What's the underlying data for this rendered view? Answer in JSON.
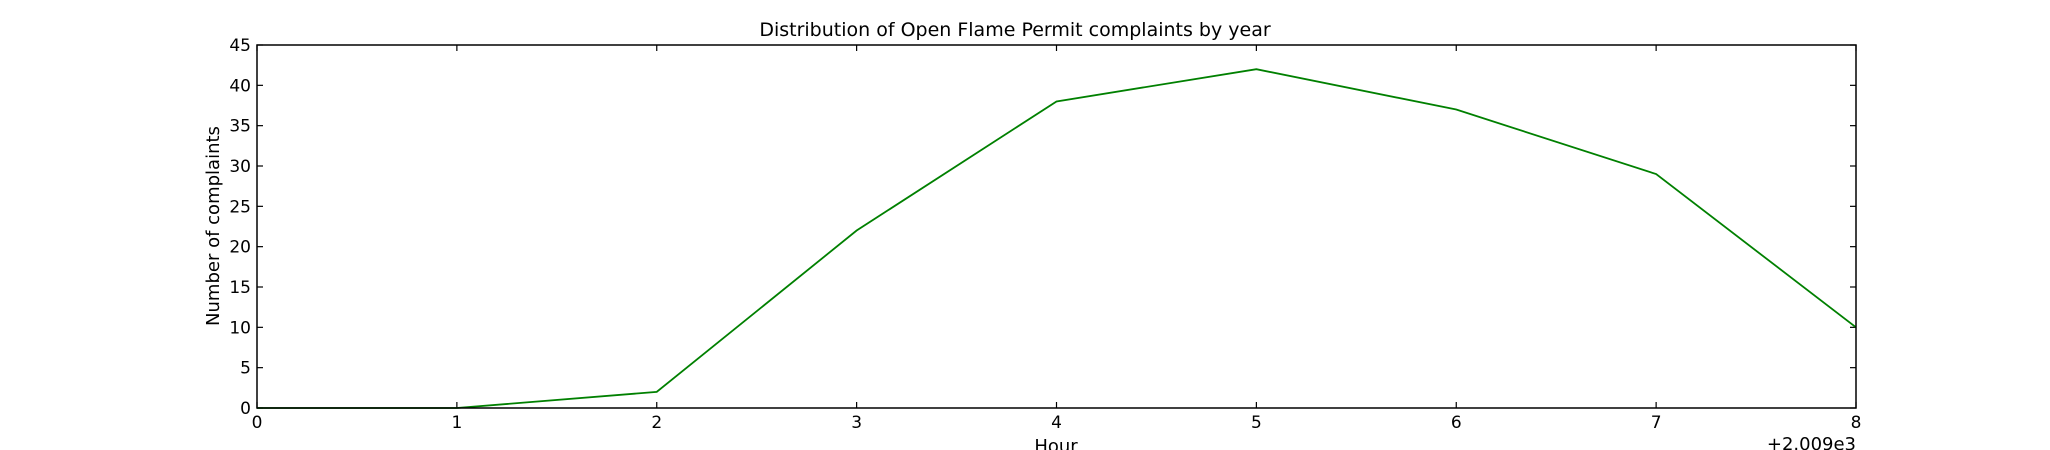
{
  "chart_data": {
    "type": "line",
    "title": "Distribution of  Open Flame Permit complaints by year",
    "xlabel": "Hour",
    "ylabel": "Number of complaints",
    "x_offset_label": "+2.009e3",
    "x": [
      0,
      1,
      2,
      3,
      4,
      5,
      6,
      7,
      8
    ],
    "x_ticks": [
      "0",
      "1",
      "2",
      "3",
      "4",
      "5",
      "6",
      "7",
      "8"
    ],
    "y_ticks": [
      "0",
      "5",
      "10",
      "15",
      "20",
      "25",
      "30",
      "35",
      "40",
      "45"
    ],
    "xlim": [
      0,
      8
    ],
    "ylim": [
      0,
      45
    ],
    "grid": false,
    "series": [
      {
        "values": [
          0,
          0,
          2,
          22,
          38,
          42,
          37,
          29,
          10
        ],
        "color": "#008000"
      }
    ]
  }
}
